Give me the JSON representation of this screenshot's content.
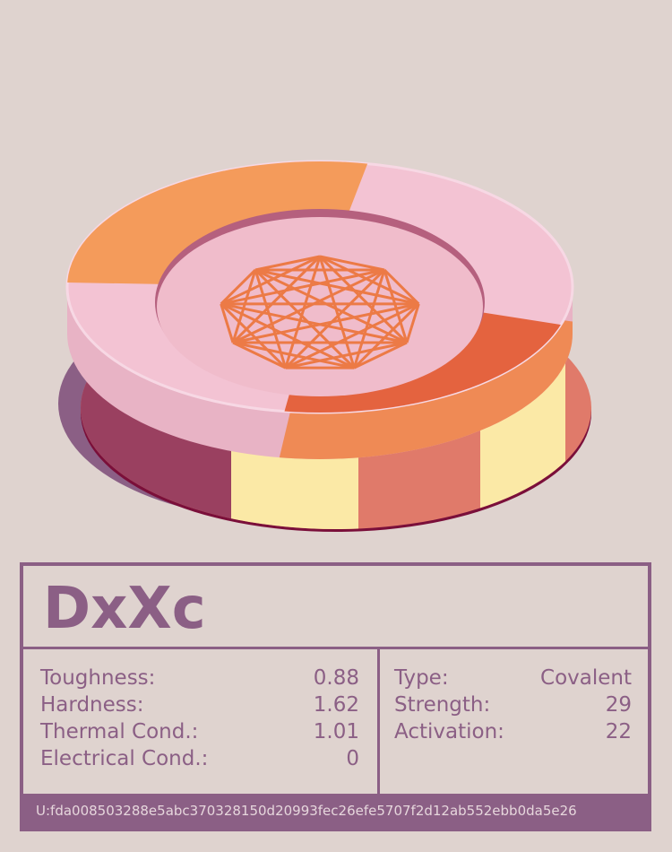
{
  "card": {
    "title": "DxXc",
    "properties": [
      {
        "label": "Toughness:",
        "value": "0.88"
      },
      {
        "label": "Hardness:",
        "value": "1.62"
      },
      {
        "label": "Thermal Cond.:",
        "value": "1.01"
      },
      {
        "label": "Electrical Cond.:",
        "value": "0"
      }
    ],
    "bond": [
      {
        "label": "Type:",
        "value": "Covalent"
      },
      {
        "label": "Strength:",
        "value": "29"
      },
      {
        "label": "Activation:",
        "value": "22"
      }
    ],
    "id": "U:fda008503288e5abc370328150d20993fec26efe5707f2d12ab552ebb0da5e26"
  }
}
